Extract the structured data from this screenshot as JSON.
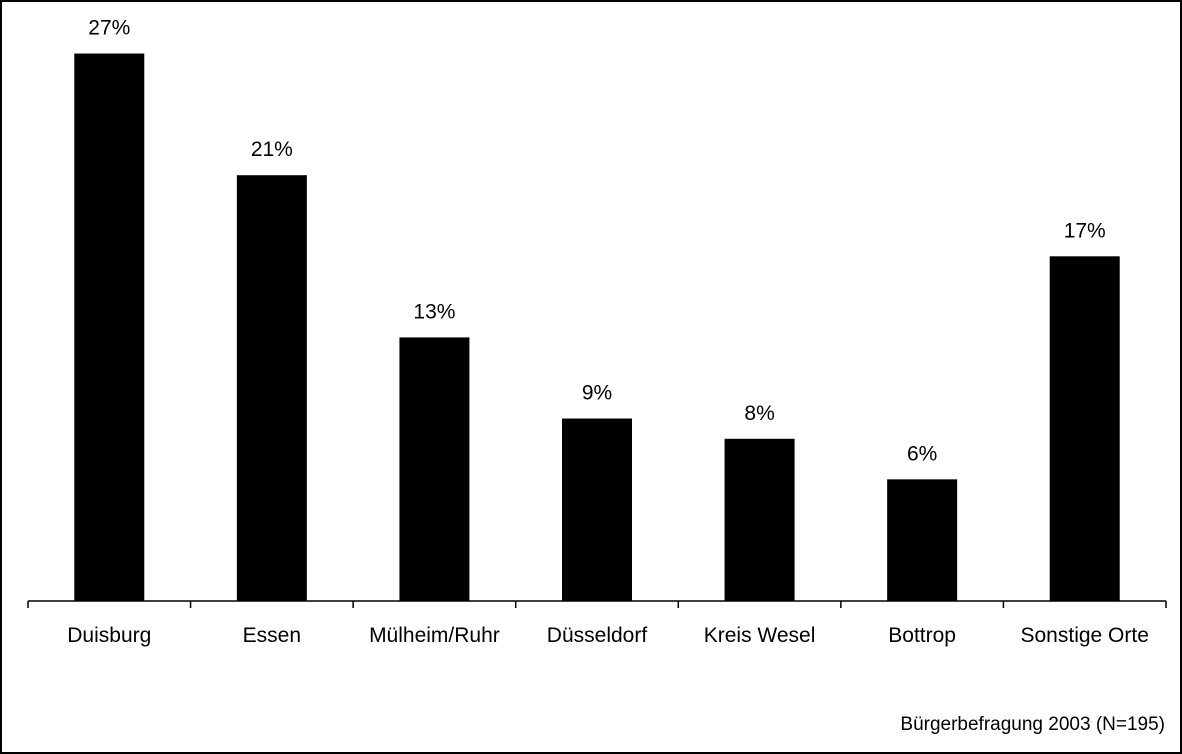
{
  "chart_data": {
    "type": "bar",
    "title": "",
    "xlabel": "",
    "ylabel": "",
    "categories": [
      "Duisburg",
      "Essen",
      "Mülheim/Ruhr",
      "Düsseldorf",
      "Kreis Wesel",
      "Bottrop",
      "Sonstige Orte"
    ],
    "values": [
      27,
      21,
      13,
      9,
      8,
      6,
      17
    ],
    "value_labels": [
      "27%",
      "21%",
      "13%",
      "9%",
      "8%",
      "6%",
      "17%"
    ],
    "unit": "%",
    "ylim": [
      0,
      29
    ],
    "grid": false,
    "legend": "none",
    "bar_color": "#000000",
    "source_note": "Bürgerbefragung 2003 (N=195)"
  }
}
